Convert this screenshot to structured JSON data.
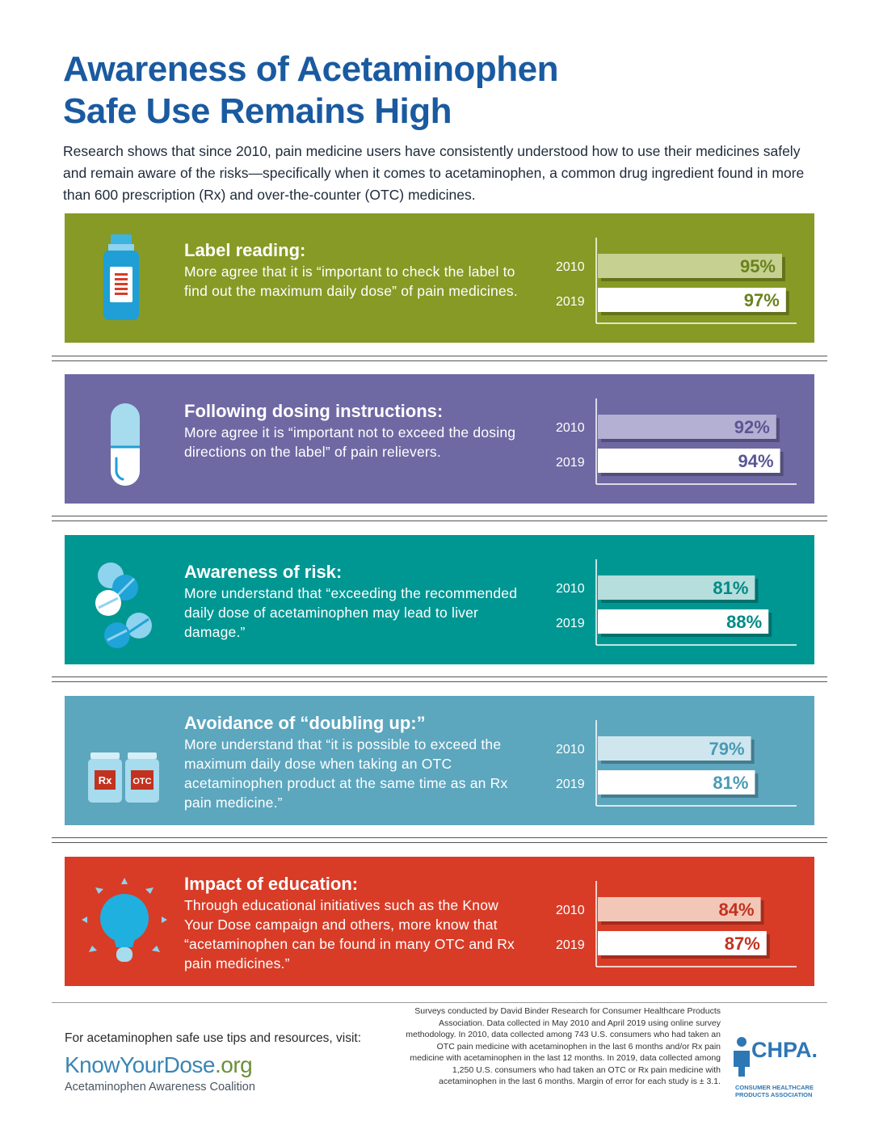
{
  "title_line1": "Awareness of Acetaminophen",
  "title_line2": "Safe Use Remains High",
  "intro": "Research shows that since 2010, pain medicine users have consistently understood how to use their medicines safely and remain aware of the risks—specifically when it comes to acetaminophen, a common drug ingredient found in more than 600 prescription (Rx) and over-the-counter (OTC) medicines.",
  "chart_data": [
    {
      "type": "bar",
      "heading": "Label reading:",
      "description": "More agree that it is “important to check the label to find out the maximum daily dose” of pain medicines.",
      "categories": [
        "2010",
        "2019"
      ],
      "values": [
        95,
        97
      ],
      "value_labels": [
        "95%",
        "97%"
      ],
      "icon": "medicine-bottle-icon",
      "panel_color": "#869a25",
      "bar_2010_color": "#c6d091",
      "label_color": "#6a821c"
    },
    {
      "type": "bar",
      "heading": "Following dosing instructions:",
      "description": "More agree it is “important not to exceed the dosing directions on the label” of pain relievers.",
      "categories": [
        "2010",
        "2019"
      ],
      "values": [
        92,
        94
      ],
      "value_labels": [
        "92%",
        "94%"
      ],
      "icon": "capsule-icon",
      "panel_color": "#6e69a3",
      "bar_2010_color": "#b4b0d3",
      "label_color": "#5a5694"
    },
    {
      "type": "bar",
      "heading": "Awareness of risk:",
      "description": "More understand that “exceeding the recommended daily dose of acetaminophen may lead to liver damage.”",
      "categories": [
        "2010",
        "2019"
      ],
      "values": [
        81,
        88
      ],
      "value_labels": [
        "81%",
        "88%"
      ],
      "icon": "pills-icon",
      "panel_color": "#009793",
      "bar_2010_color": "#b5dedc",
      "label_color": "#008a86"
    },
    {
      "type": "bar",
      "heading": "Avoidance of “doubling up:”",
      "description": "More understand that “it is possible to exceed the maximum daily dose when taking an OTC acetaminophen product at the same time as an Rx pain medicine.”",
      "categories": [
        "2010",
        "2019"
      ],
      "values": [
        79,
        81
      ],
      "value_labels": [
        "79%",
        "81%"
      ],
      "icon": "rx-otc-bottles-icon",
      "icon_labels": [
        "Rx",
        "OTC"
      ],
      "panel_color": "#5ca6be",
      "bar_2010_color": "#cfe6ee",
      "label_color": "#4a9ab5"
    },
    {
      "type": "bar",
      "heading": "Impact of education:",
      "description": "Through educational initiatives such as the Know Your Dose campaign and others, more know that “acetaminophen can be found in many OTC and Rx pain medicines.”",
      "categories": [
        "2010",
        "2019"
      ],
      "values": [
        84,
        87
      ],
      "value_labels": [
        "84%",
        "87%"
      ],
      "icon": "lightbulb-icon",
      "panel_color": "#d83c27",
      "bar_2010_color": "#f3c7b8",
      "label_color": "#c2321f"
    }
  ],
  "footer": {
    "visit": "For acetaminophen safe use tips and resources, visit:",
    "site_name": "KnowYourDose",
    "site_tld": ".org",
    "coalition": "Acetaminophen Awareness Coalition",
    "methodology": "Surveys conducted by David Binder Research for Consumer Healthcare Products Association. Data collected in May 2010 and April 2019 using online survey methodology. In 2010, data collected among 743 U.S. consumers who had taken an OTC pain medicine with acetaminophen in the last 6 months and/or Rx pain medicine with acetaminophen in the last 12 months. In 2019, data collected among 1,250 U.S. consumers who had taken an OTC or Rx pain medicine with acetaminophen in the last 6 months. Margin of error for each study is ± 3.1.",
    "chpa_name": "CHPA.",
    "chpa_full": "CONSUMER HEALTHCARE PRODUCTS ASSOCIATION"
  }
}
